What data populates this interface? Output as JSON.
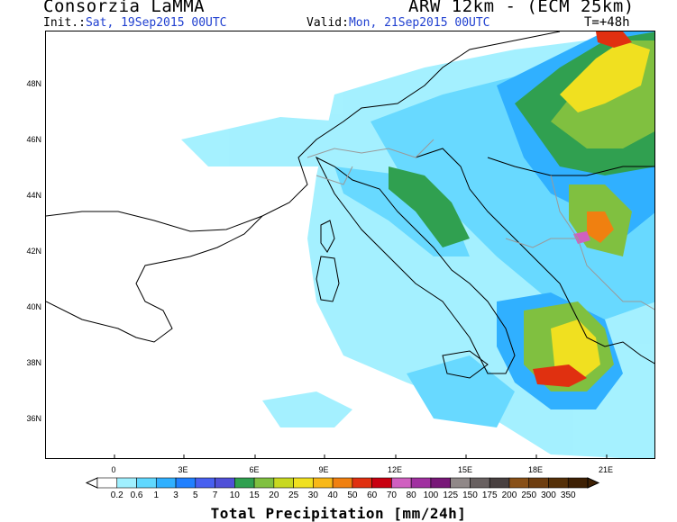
{
  "header": {
    "title": "Consorzia LaMMA",
    "model": "ARW 12km - (ECM 25km)",
    "init_label": "Init.:",
    "init_value": "Sat, 19Sep2015 00UTC",
    "valid_label": "Valid:",
    "valid_value": "Mon, 21Sep2015 00UTC",
    "forecast_step": "T=+48h"
  },
  "map": {
    "lat_labels": [
      "48N",
      "46N",
      "44N",
      "42N",
      "40N",
      "38N",
      "36N"
    ],
    "lon_labels": [
      "0",
      "3E",
      "6E",
      "9E",
      "12E",
      "15E",
      "18E",
      "21E"
    ],
    "colors": {
      "sea": "#ffffff",
      "coast": "#000000",
      "border": "#9a9a9a"
    }
  },
  "legend": {
    "title": "Total Precipitation [mm/24h]",
    "values": [
      "0.2",
      "0.6",
      "1",
      "3",
      "5",
      "7",
      "10",
      "15",
      "20",
      "25",
      "30",
      "40",
      "50",
      "60",
      "70",
      "80",
      "100",
      "125",
      "150",
      "175",
      "200",
      "250",
      "300",
      "350"
    ],
    "colors": [
      "#ffffff",
      "#a0f0ff",
      "#60d8ff",
      "#30b0ff",
      "#2080ff",
      "#4860f0",
      "#5050d8",
      "#30a050",
      "#80c040",
      "#c8d820",
      "#f0e020",
      "#f8b818",
      "#f08010",
      "#e03010",
      "#c80010",
      "#d060c0",
      "#a030a0",
      "#781878",
      "#908888",
      "#686060",
      "#484040",
      "#885018",
      "#6e3e10",
      "#553008",
      "#3e2004"
    ]
  }
}
